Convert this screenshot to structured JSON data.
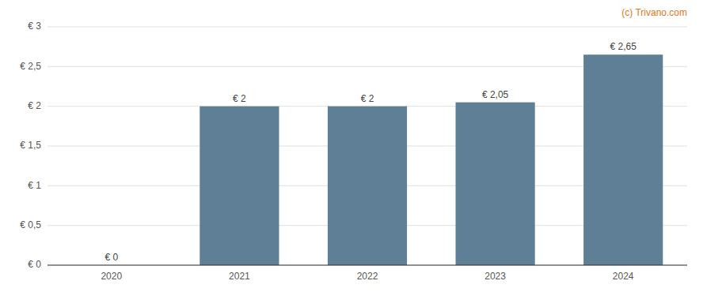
{
  "chart_data": {
    "type": "bar",
    "categories": [
      "2020",
      "2021",
      "2022",
      "2023",
      "2024"
    ],
    "values": [
      0,
      2.0,
      2.0,
      2.05,
      2.65
    ],
    "value_labels": [
      "€ 0",
      "€ 2",
      "€ 2",
      "€ 2,05",
      "€ 2,65"
    ],
    "data_labels": true,
    "color": "#5f7f96",
    "ylim": [
      0,
      3.0
    ],
    "yticks": [
      {
        "value": 0,
        "label": "€ 0"
      },
      {
        "value": 0.5,
        "label": "€ 0,5"
      },
      {
        "value": 1.0,
        "label": "€ 1"
      },
      {
        "value": 1.5,
        "label": "€ 1,5"
      },
      {
        "value": 2.0,
        "label": "€ 2"
      },
      {
        "value": 2.5,
        "label": "€ 2,5"
      },
      {
        "value": 3.0,
        "label": "€ 3"
      }
    ],
    "grid": true,
    "annotations": [
      "(c) Trivano.com"
    ]
  }
}
